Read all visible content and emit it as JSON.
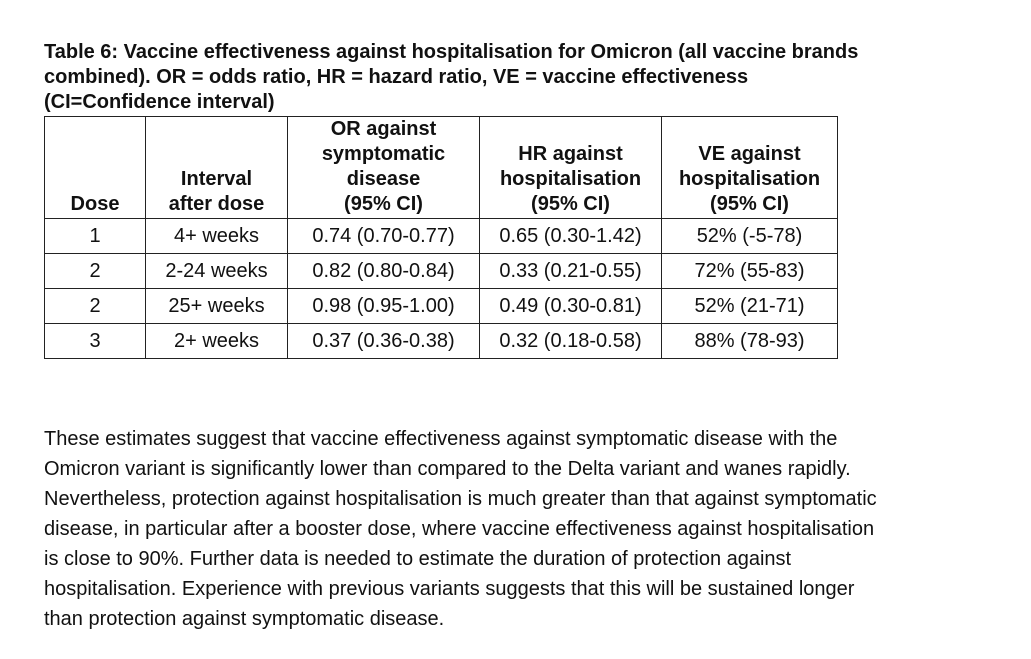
{
  "caption": {
    "lines": [
      "Table 6: Vaccine effectiveness against hospitalisation for Omicron (all vaccine brands",
      "combined). OR = odds ratio, HR = hazard ratio, VE = vaccine effectiveness",
      "(CI=Confidence interval)"
    ]
  },
  "table": {
    "headers": {
      "dose": [
        "Dose"
      ],
      "interval": [
        "Interval",
        "after dose"
      ],
      "or": [
        "OR against",
        "symptomatic",
        "disease",
        "(95% CI)"
      ],
      "hr": [
        "HR against",
        "hospitalisation",
        "(95% CI)"
      ],
      "ve": [
        "VE against",
        "hospitalisation",
        "(95% CI)"
      ]
    },
    "rows": [
      {
        "dose": "1",
        "interval": "4+ weeks",
        "or": "0.74 (0.70-0.77)",
        "hr": "0.65 (0.30-1.42)",
        "ve": "52% (-5-78)"
      },
      {
        "dose": "2",
        "interval": "2-24 weeks",
        "or": "0.82 (0.80-0.84)",
        "hr": "0.33 (0.21-0.55)",
        "ve": "72% (55-83)"
      },
      {
        "dose": "2",
        "interval": "25+ weeks",
        "or": "0.98 (0.95-1.00)",
        "hr": "0.49 (0.30-0.81)",
        "ve": "52% (21-71)"
      },
      {
        "dose": "3",
        "interval": "2+ weeks",
        "or": "0.37 (0.36-0.38)",
        "hr": "0.32 (0.18-0.58)",
        "ve": "88% (78-93)"
      }
    ]
  },
  "paragraph": {
    "lines": [
      "These estimates suggest that vaccine effectiveness against symptomatic disease with the",
      "Omicron variant is significantly lower than compared to the Delta variant and wanes rapidly.",
      "Nevertheless, protection against hospitalisation is much greater than that against symptomatic",
      "disease, in particular after a booster dose, where vaccine effectiveness against hospitalisation",
      "is close to 90%. Further data is needed to estimate the duration of protection against",
      "hospitalisation. Experience with previous variants suggests that this will be sustained longer",
      "than protection against symptomatic disease."
    ]
  }
}
